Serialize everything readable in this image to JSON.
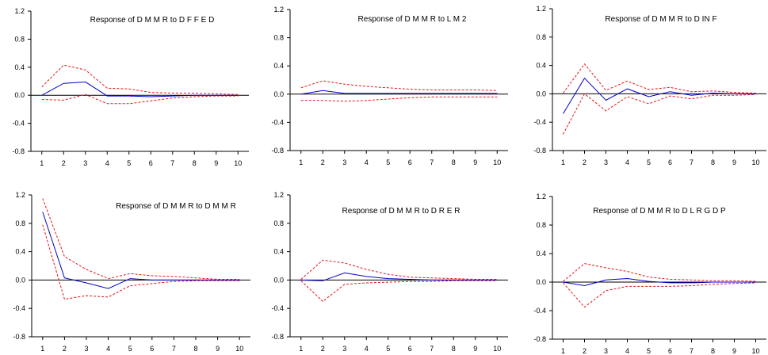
{
  "figure": {
    "colors": {
      "response": "#0000cc",
      "band": "#e8141b",
      "axis": "#000000"
    }
  },
  "chart_data": [
    {
      "type": "line",
      "title": "Response of D M M R to D F F E D",
      "x": [
        1,
        2,
        3,
        4,
        5,
        6,
        7,
        8,
        9,
        10
      ],
      "ylim": [
        -0.8,
        1.2
      ],
      "yticks": [
        "1.2",
        "0.8",
        "0.4",
        "0.0",
        "-0.4",
        "-0.8"
      ],
      "xticks": [
        "1",
        "2",
        "3",
        "4",
        "5",
        "6",
        "7",
        "8",
        "9",
        "10"
      ],
      "series": [
        {
          "role": "response",
          "values": [
            0.0,
            0.17,
            0.19,
            -0.01,
            -0.01,
            -0.02,
            -0.01,
            0.0,
            0.0,
            0.0
          ]
        },
        {
          "role": "upper",
          "values": [
            0.12,
            0.43,
            0.36,
            0.1,
            0.09,
            0.04,
            0.03,
            0.03,
            0.02,
            0.01
          ]
        },
        {
          "role": "lower",
          "values": [
            -0.06,
            -0.07,
            0.01,
            -0.12,
            -0.12,
            -0.08,
            -0.04,
            -0.02,
            -0.01,
            -0.01
          ]
        }
      ]
    },
    {
      "type": "line",
      "title": "Response of D M M R to L M 2",
      "x": [
        1,
        2,
        3,
        4,
        5,
        6,
        7,
        8,
        9,
        10
      ],
      "ylim": [
        -0.8,
        1.2
      ],
      "yticks": [
        "1.2",
        "0.8",
        "0.4",
        "0.0",
        "-0.4",
        "-0.8"
      ],
      "xticks": [
        "1",
        "2",
        "3",
        "4",
        "5",
        "6",
        "7",
        "8",
        "9",
        "10"
      ],
      "series": [
        {
          "role": "response",
          "values": [
            0.0,
            0.05,
            0.01,
            0.01,
            0.01,
            0.01,
            0.01,
            0.01,
            0.01,
            0.01
          ]
        },
        {
          "role": "upper",
          "values": [
            0.09,
            0.19,
            0.14,
            0.11,
            0.09,
            0.07,
            0.06,
            0.06,
            0.06,
            0.05
          ]
        },
        {
          "role": "lower",
          "values": [
            -0.09,
            -0.09,
            -0.1,
            -0.09,
            -0.07,
            -0.05,
            -0.04,
            -0.04,
            -0.04,
            -0.04
          ]
        }
      ]
    },
    {
      "type": "line",
      "title": "Response of D M M R to D IN F",
      "x": [
        1,
        2,
        3,
        4,
        5,
        6,
        7,
        8,
        9,
        10
      ],
      "ylim": [
        -0.8,
        1.2
      ],
      "yticks": [
        "1.2",
        "0.8",
        "0.4",
        "0.0",
        "-0.4",
        "-0.8"
      ],
      "xticks": [
        "1",
        "2",
        "3",
        "4",
        "5",
        "6",
        "7",
        "8",
        "9",
        "10"
      ],
      "series": [
        {
          "role": "response",
          "values": [
            -0.28,
            0.22,
            -0.09,
            0.07,
            -0.04,
            0.03,
            -0.02,
            0.01,
            0.0,
            0.0
          ]
        },
        {
          "role": "upper",
          "values": [
            0.01,
            0.42,
            0.05,
            0.18,
            0.06,
            0.09,
            0.03,
            0.04,
            0.02,
            0.01
          ]
        },
        {
          "role": "lower",
          "values": [
            -0.57,
            0.0,
            -0.24,
            -0.04,
            -0.14,
            -0.03,
            -0.07,
            -0.02,
            -0.02,
            -0.01
          ]
        }
      ]
    },
    {
      "type": "line",
      "title": "Response of D M M R to D M M R",
      "x": [
        1,
        2,
        3,
        4,
        5,
        6,
        7,
        8,
        9,
        10
      ],
      "ylim": [
        -0.8,
        1.2
      ],
      "yticks": [
        "1.2",
        "0.8",
        "0.4",
        "0.0",
        "-0.4",
        "-0.8"
      ],
      "xticks": [
        "1",
        "2",
        "3",
        "4",
        "5",
        "6",
        "7",
        "8",
        "9",
        "10"
      ],
      "series": [
        {
          "role": "response",
          "values": [
            0.96,
            0.03,
            -0.04,
            -0.12,
            0.02,
            0.0,
            0.0,
            0.0,
            0.0,
            0.0
          ]
        },
        {
          "role": "upper",
          "values": [
            1.15,
            0.33,
            0.15,
            0.02,
            0.09,
            0.06,
            0.05,
            0.03,
            0.01,
            0.01
          ]
        },
        {
          "role": "lower",
          "values": [
            0.78,
            -0.27,
            -0.22,
            -0.24,
            -0.08,
            -0.05,
            -0.02,
            -0.01,
            -0.01,
            -0.01
          ]
        }
      ]
    },
    {
      "type": "line",
      "title": "Response of D M M R to D R E R",
      "x": [
        1,
        2,
        3,
        4,
        5,
        6,
        7,
        8,
        9,
        10
      ],
      "ylim": [
        -0.8,
        1.2
      ],
      "yticks": [
        "1.2",
        "0.8",
        "0.4",
        "0.0",
        "-0.4",
        "-0.8"
      ],
      "xticks": [
        "1",
        "2",
        "3",
        "4",
        "5",
        "6",
        "7",
        "8",
        "9",
        "10"
      ],
      "series": [
        {
          "role": "response",
          "values": [
            0.0,
            -0.01,
            0.1,
            0.05,
            0.02,
            0.01,
            0.0,
            0.0,
            0.0,
            0.0
          ]
        },
        {
          "role": "upper",
          "values": [
            0.01,
            0.28,
            0.24,
            0.15,
            0.08,
            0.04,
            0.03,
            0.02,
            0.01,
            0.01
          ]
        },
        {
          "role": "lower",
          "values": [
            -0.01,
            -0.3,
            -0.06,
            -0.04,
            -0.03,
            -0.02,
            -0.02,
            -0.01,
            -0.01,
            -0.01
          ]
        }
      ]
    },
    {
      "type": "line",
      "title": "Response of D M M R to D L R G D P",
      "x": [
        1,
        2,
        3,
        4,
        5,
        6,
        7,
        8,
        9,
        10
      ],
      "ylim": [
        -0.8,
        1.2
      ],
      "yticks": [
        "1.2",
        "0.8",
        "0.4",
        "0.0",
        "-0.4",
        "-0.8"
      ],
      "xticks": [
        "1",
        "2",
        "3",
        "4",
        "5",
        "6",
        "7",
        "8",
        "9",
        "10"
      ],
      "series": [
        {
          "role": "response",
          "values": [
            0.0,
            -0.05,
            0.03,
            0.05,
            0.01,
            -0.01,
            -0.01,
            0.0,
            0.0,
            0.0
          ]
        },
        {
          "role": "upper",
          "values": [
            0.01,
            0.26,
            0.2,
            0.15,
            0.07,
            0.04,
            0.03,
            0.02,
            0.02,
            0.01
          ]
        },
        {
          "role": "lower",
          "values": [
            -0.01,
            -0.35,
            -0.12,
            -0.06,
            -0.06,
            -0.06,
            -0.05,
            -0.03,
            -0.02,
            -0.01
          ]
        }
      ]
    }
  ]
}
